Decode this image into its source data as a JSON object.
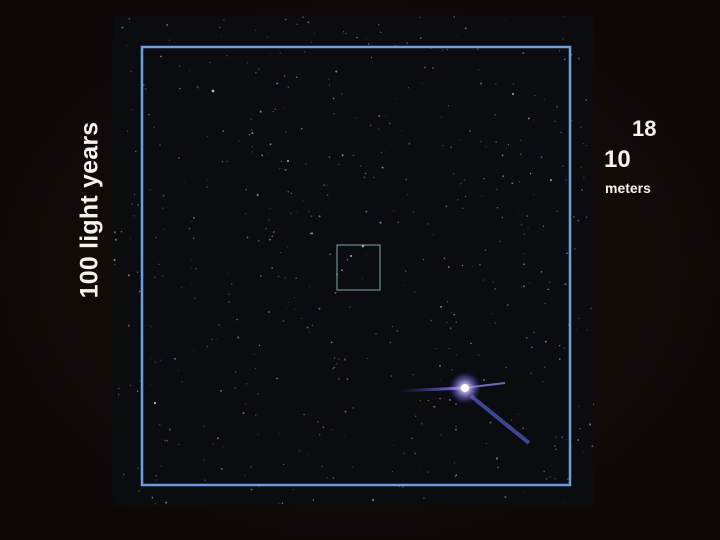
{
  "scale": {
    "distance_label": "100 light years",
    "power_base": "10",
    "power_exponent": "18",
    "unit": "meters"
  },
  "colors": {
    "background": "#120b08",
    "space": "#0a0c10",
    "frame_outline": "#6f9de0",
    "inner_box_outline": "#7fa7a0",
    "bright_star": "#ffffff",
    "star_glow": "#8a7dff"
  }
}
